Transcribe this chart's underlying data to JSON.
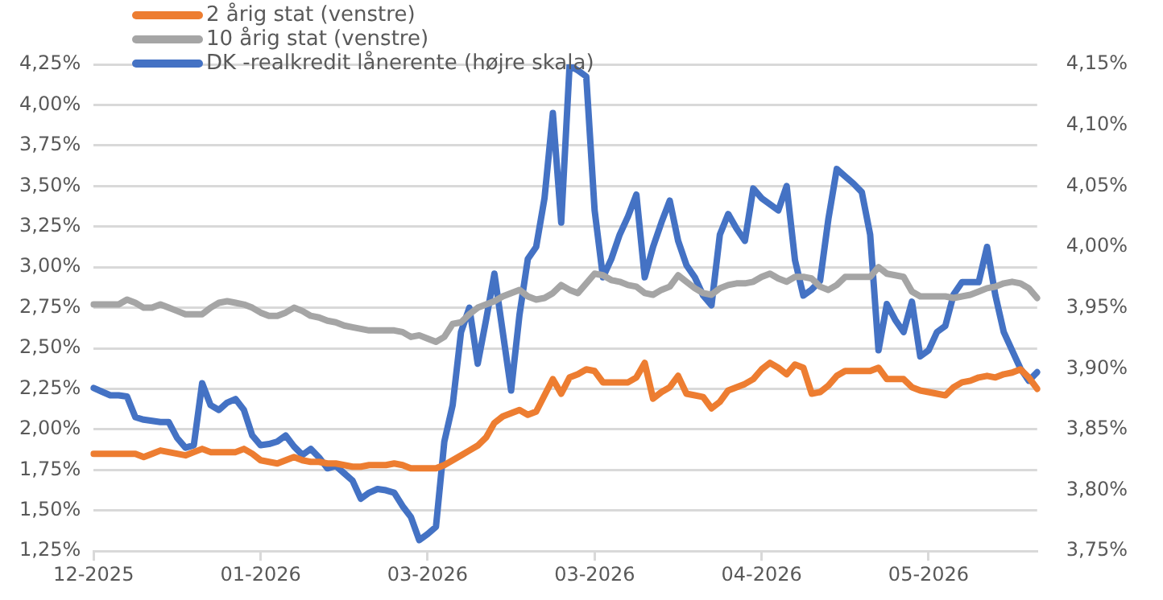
{
  "chart_data": {
    "type": "line",
    "legend": "top left",
    "grid": "y",
    "marker": "none",
    "line_style": "solid",
    "categories": [
      "12-2025",
      null,
      null,
      null,
      null,
      null,
      null,
      null,
      null,
      null,
      null,
      null,
      null,
      null,
      null,
      null,
      null,
      null,
      null,
      null,
      "01-2026",
      null,
      null,
      null,
      null,
      null,
      null,
      null,
      null,
      null,
      null,
      null,
      null,
      null,
      null,
      null,
      null,
      null,
      null,
      null,
      "03-2026",
      null,
      null,
      null,
      null,
      null,
      null,
      null,
      null,
      null,
      null,
      null,
      null,
      null,
      null,
      null,
      null,
      null,
      null,
      null,
      "03-2026",
      null,
      null,
      null,
      null,
      null,
      null,
      null,
      null,
      null,
      null,
      null,
      null,
      null,
      null,
      null,
      null,
      null,
      null,
      null,
      "04-2026",
      null,
      null,
      null,
      null,
      null,
      null,
      null,
      null,
      null,
      null,
      null,
      null,
      null,
      null,
      null,
      null,
      null,
      null,
      null,
      "05-2026",
      null,
      null,
      null,
      null,
      null,
      null,
      null,
      null,
      null,
      null,
      null,
      null,
      null
    ],
    "ylim": [
      1.25,
      4.25
    ],
    "yticks": [
      {
        "value": 1.25,
        "label": "1,25%"
      },
      {
        "value": 1.5,
        "label": "1,50%"
      },
      {
        "value": 1.75,
        "label": "1,75%"
      },
      {
        "value": 2,
        "label": "2,00%"
      },
      {
        "value": 2.25,
        "label": "2,25%"
      },
      {
        "value": 2.5,
        "label": "2,50%"
      },
      {
        "value": 2.75,
        "label": "2,75%"
      },
      {
        "value": 3,
        "label": "3,00%"
      },
      {
        "value": 3.25,
        "label": "3,25%"
      },
      {
        "value": 3.5,
        "label": "3,50%"
      },
      {
        "value": 3.75,
        "label": "3,75%"
      },
      {
        "value": 4,
        "label": "4,00%"
      },
      {
        "value": 4.25,
        "label": "4,25%"
      }
    ],
    "y2lim": [
      3.75,
      4.15
    ],
    "y2ticks": [
      {
        "value": 3.75,
        "label": "3,75%"
      },
      {
        "value": 3.8,
        "label": "3,80%"
      },
      {
        "value": 3.85,
        "label": "3,85%"
      },
      {
        "value": 3.9,
        "label": "3,90%"
      },
      {
        "value": 3.95,
        "label": "3,95%"
      },
      {
        "value": 4,
        "label": "4,00%"
      },
      {
        "value": 4.05,
        "label": "4,05%"
      },
      {
        "value": 4.1,
        "label": "4,10%"
      },
      {
        "value": 4.15,
        "label": "4,15%"
      }
    ],
    "series": [
      {
        "name": "2 årig stat (venstre)",
        "color": "#ed7d31",
        "values": [
          1.85,
          1.85,
          1.85,
          1.85,
          1.85,
          1.85,
          1.83,
          1.85,
          1.87,
          1.86,
          1.85,
          1.84,
          1.86,
          1.88,
          1.86,
          1.86,
          1.86,
          1.86,
          1.88,
          1.85,
          1.81,
          1.8,
          1.79,
          1.81,
          1.83,
          1.81,
          1.8,
          1.8,
          1.79,
          1.79,
          1.78,
          1.77,
          1.77,
          1.78,
          1.78,
          1.78,
          1.79,
          1.78,
          1.76,
          1.76,
          1.76,
          1.76,
          1.78,
          1.81,
          1.84,
          1.87,
          1.9,
          1.95,
          2.04,
          2.08,
          2.1,
          2.12,
          2.09,
          2.11,
          2.21,
          2.31,
          2.22,
          2.32,
          2.34,
          2.37,
          2.36,
          2.29,
          2.29,
          2.29,
          2.29,
          2.32,
          2.41,
          2.19,
          2.23,
          2.26,
          2.33,
          2.22,
          2.21,
          2.2,
          2.13,
          2.17,
          2.24,
          2.26,
          2.28,
          2.31,
          2.37,
          2.41,
          2.38,
          2.34,
          2.4,
          2.38,
          2.22,
          2.23,
          2.27,
          2.33,
          2.36,
          2.36,
          2.36,
          2.36,
          2.38,
          2.31,
          2.31,
          2.31,
          2.26,
          2.24,
          2.23,
          2.22,
          2.21,
          2.26,
          2.29,
          2.3,
          2.32,
          2.33,
          2.32,
          2.34,
          2.35,
          2.37,
          2.32,
          2.25
        ]
      },
      {
        "name": "10 årig stat (venstre)",
        "color": "#a5a5a5",
        "values": [
          2.77,
          2.77,
          2.77,
          2.77,
          2.8,
          2.78,
          2.75,
          2.75,
          2.77,
          2.75,
          2.73,
          2.71,
          2.71,
          2.71,
          2.75,
          2.78,
          2.79,
          2.78,
          2.77,
          2.75,
          2.72,
          2.7,
          2.7,
          2.72,
          2.75,
          2.73,
          2.7,
          2.69,
          2.67,
          2.66,
          2.64,
          2.63,
          2.62,
          2.61,
          2.61,
          2.61,
          2.61,
          2.6,
          2.57,
          2.58,
          2.56,
          2.54,
          2.57,
          2.65,
          2.66,
          2.71,
          2.75,
          2.77,
          2.79,
          2.82,
          2.84,
          2.86,
          2.82,
          2.8,
          2.81,
          2.84,
          2.89,
          2.86,
          2.84,
          2.9,
          2.96,
          2.95,
          2.92,
          2.91,
          2.89,
          2.88,
          2.84,
          2.83,
          2.86,
          2.88,
          2.95,
          2.91,
          2.87,
          2.84,
          2.83,
          2.87,
          2.89,
          2.9,
          2.9,
          2.91,
          2.94,
          2.96,
          2.93,
          2.91,
          2.94,
          2.94,
          2.93,
          2.88,
          2.86,
          2.89,
          2.94,
          2.94,
          2.94,
          2.94,
          3,
          2.96,
          2.95,
          2.94,
          2.85,
          2.82,
          2.82,
          2.82,
          2.82,
          2.81,
          2.82,
          2.83,
          2.85,
          2.87,
          2.88,
          2.9,
          2.91,
          2.9,
          2.87,
          2.81
        ]
      },
      {
        "name": "DK -realkredit lånerente (højre skala)",
        "color": "#4472c4",
        "axis": "y2",
        "values": [
          3.884,
          3.881,
          3.878,
          3.878,
          3.877,
          3.86,
          3.858,
          3.857,
          3.856,
          3.856,
          3.843,
          3.835,
          3.837,
          3.888,
          3.87,
          3.866,
          3.872,
          3.875,
          3.866,
          3.845,
          3.837,
          3.838,
          3.84,
          3.845,
          3.836,
          3.829,
          3.834,
          3.827,
          3.818,
          3.82,
          3.814,
          3.808,
          3.793,
          3.798,
          3.801,
          3.8,
          3.798,
          3.787,
          3.778,
          3.759,
          3.764,
          3.77,
          3.84,
          3.87,
          3.93,
          3.95,
          3.904,
          3.94,
          3.978,
          3.93,
          3.882,
          3.944,
          3.99,
          4,
          4.04,
          4.11,
          4.02,
          4.149,
          4.145,
          4.14,
          4.03,
          3.975,
          3.99,
          4.01,
          4.025,
          4.043,
          3.975,
          4,
          4.02,
          4.038,
          4.005,
          3.985,
          3.975,
          3.96,
          3.952,
          4.01,
          4.027,
          4.015,
          4.005,
          4.048,
          4.04,
          4.035,
          4.03,
          4.05,
          3.989,
          3.96,
          3.965,
          3.972,
          4.023,
          4.064,
          4.058,
          4.052,
          4.045,
          4.01,
          3.915,
          3.953,
          3.94,
          3.93,
          3.955,
          3.91,
          3.915,
          3.93,
          3.935,
          3.961,
          3.971,
          3.971,
          3.971,
          4,
          3.96,
          3.93,
          3.915,
          3.9,
          3.89,
          3.897
        ]
      }
    ]
  }
}
